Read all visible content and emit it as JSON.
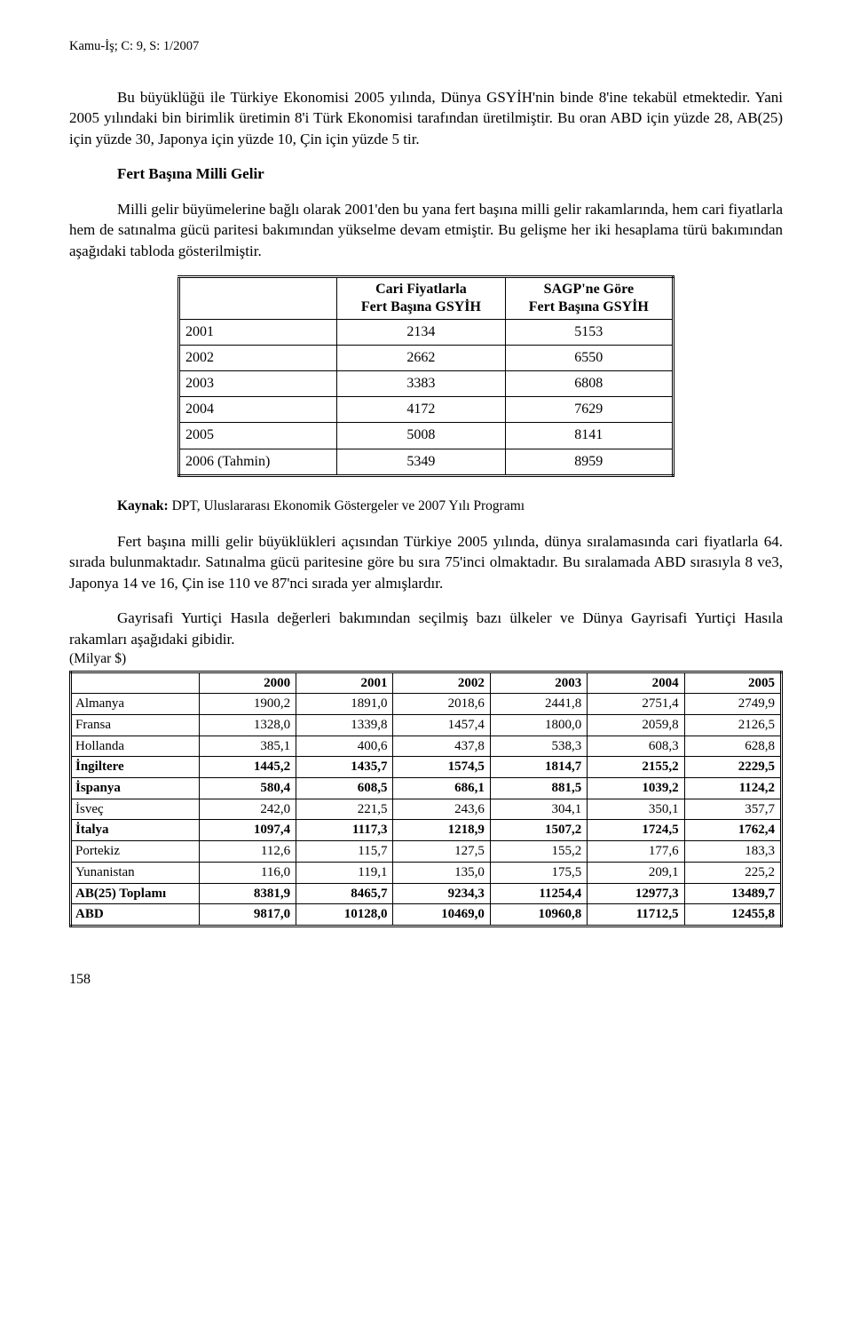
{
  "header": "Kamu-İş; C: 9, S: 1/2007",
  "para1": "Bu büyüklüğü ile Türkiye Ekonomisi 2005 yılında, Dünya GSYİH'nin binde 8'ine tekabül etmektedir. Yani 2005 yılındaki bin birimlik üretimin 8'i Türk Ekonomisi tarafından üretilmiştir. Bu oran ABD için yüzde 28, AB(25) için  yüzde 30, Japonya için yüzde 10, Çin için yüzde 5 tir.",
  "sectionTitle": "Fert Başına Milli Gelir",
  "para2": "Milli gelir büyümelerine bağlı olarak 2001'den bu yana fert başına milli gelir rakamlarında, hem cari fiyatlarla hem de satınalma gücü paritesi bakımından yükselme devam etmiştir. Bu gelişme her iki hesaplama türü bakımından aşağıdaki tabloda gösterilmiştir.",
  "table1": {
    "headers": [
      "",
      "Cari Fiyatlarla\nFert Başına GSYİH",
      "SAGP'ne Göre\nFert Başına GSYİH"
    ],
    "rows": [
      [
        "2001",
        "2134",
        "5153"
      ],
      [
        "2002",
        "2662",
        "6550"
      ],
      [
        "2003",
        "3383",
        "6808"
      ],
      [
        "2004",
        "4172",
        "7629"
      ],
      [
        "2005",
        "5008",
        "8141"
      ],
      [
        "2006 (Tahmin)",
        "5349",
        "8959"
      ]
    ]
  },
  "sourceLabel": "Kaynak:",
  "sourceText": " DPT, Uluslararası Ekonomik Göstergeler ve 2007 Yılı Programı",
  "para3": "Fert başına milli gelir büyüklükleri açısından Türkiye 2005 yılında, dünya sıralamasında cari fiyatlarla 64. sırada bulunmaktadır. Satınalma gücü paritesine göre bu sıra 75'inci olmaktadır. Bu sıralamada ABD sırasıyla 8 ve3, Japonya 14 ve 16, Çin ise 110 ve 87'nci sırada yer almışlardır.",
  "para4": "Gayrisafi Yurtiçi Hasıla değerleri bakımından seçilmiş bazı ülkeler ve Dünya Gayrisafi Yurtiçi Hasıla  rakamları aşağıdaki gibidir.",
  "milyar": "(Milyar $)",
  "table2": {
    "headers": [
      "",
      "2000",
      "2001",
      "2002",
      "2003",
      "2004",
      "2005"
    ],
    "rows": [
      {
        "cells": [
          "Almanya",
          "1900,2",
          "1891,0",
          "2018,6",
          "2441,8",
          "2751,4",
          "2749,9"
        ],
        "bold": false
      },
      {
        "cells": [
          "Fransa",
          "1328,0",
          "1339,8",
          "1457,4",
          "1800,0",
          "2059,8",
          "2126,5"
        ],
        "bold": false
      },
      {
        "cells": [
          "Hollanda",
          "385,1",
          "400,6",
          "437,8",
          "538,3",
          "608,3",
          "628,8"
        ],
        "bold": false
      },
      {
        "cells": [
          "İngiltere",
          "1445,2",
          "1435,7",
          "1574,5",
          "1814,7",
          "2155,2",
          "2229,5"
        ],
        "bold": true
      },
      {
        "cells": [
          "İspanya",
          "580,4",
          "608,5",
          "686,1",
          "881,5",
          "1039,2",
          "1124,2"
        ],
        "bold": true
      },
      {
        "cells": [
          "İsveç",
          "242,0",
          "221,5",
          "243,6",
          "304,1",
          "350,1",
          "357,7"
        ],
        "bold": false
      },
      {
        "cells": [
          "İtalya",
          "1097,4",
          "1117,3",
          "1218,9",
          "1507,2",
          "1724,5",
          "1762,4"
        ],
        "bold": true
      },
      {
        "cells": [
          "Portekiz",
          "112,6",
          "115,7",
          "127,5",
          "155,2",
          "177,6",
          "183,3"
        ],
        "bold": false
      },
      {
        "cells": [
          "Yunanistan",
          "116,0",
          "119,1",
          "135,0",
          "175,5",
          "209,1",
          "225,2"
        ],
        "bold": false
      },
      {
        "cells": [
          "AB(25) Toplamı",
          "8381,9",
          "8465,7",
          "9234,3",
          "11254,4",
          "12977,3",
          "13489,7"
        ],
        "bold": true
      },
      {
        "cells": [
          "ABD",
          "9817,0",
          "10128,0",
          "10469,0",
          "10960,8",
          "11712,5",
          "12455,8"
        ],
        "bold": true
      }
    ]
  },
  "pageNumber": "158"
}
